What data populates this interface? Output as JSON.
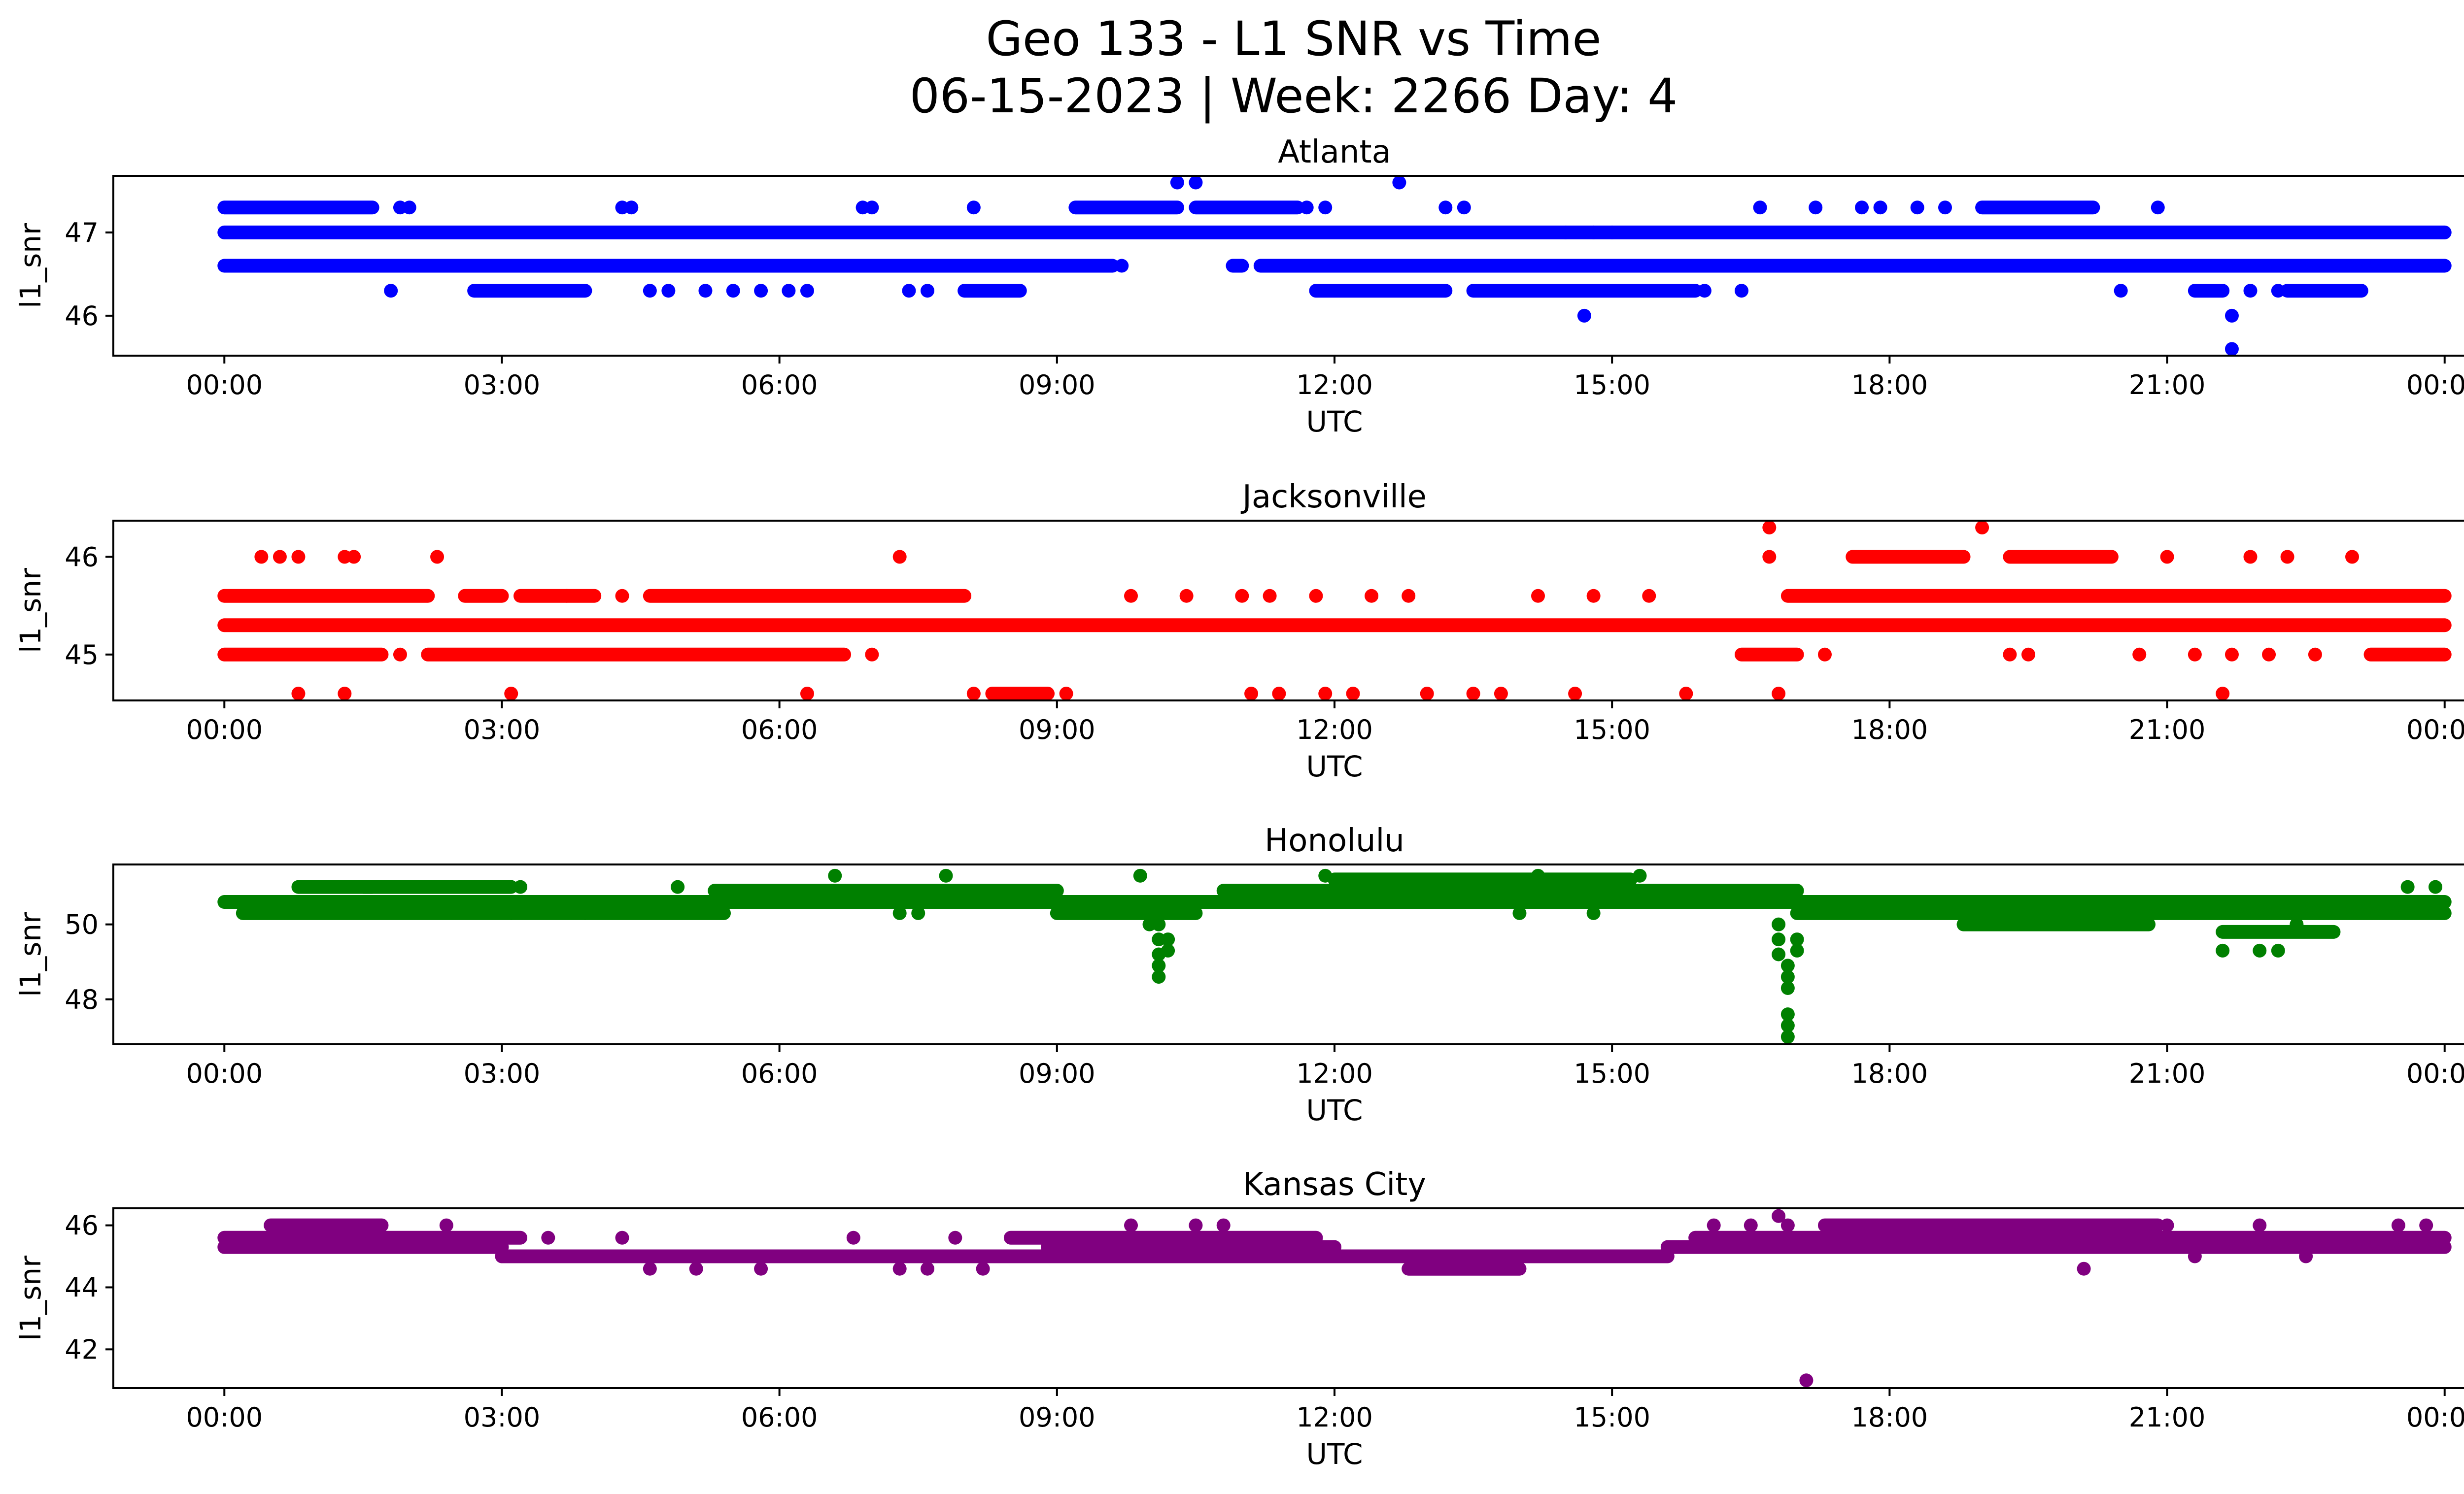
{
  "figure": {
    "title_line1": "Geo 133 - L1 SNR vs Time",
    "title_line2": "06-15-2023 | Week: 2266 Day: 4"
  },
  "chart_data": [
    {
      "type": "scatter",
      "title": "Atlanta",
      "xlabel": "UTC",
      "ylabel": "l1_snr",
      "color": "#0000ff",
      "xlim_hours": [
        -1.2,
        25.2
      ],
      "ylim": [
        45.52,
        47.68
      ],
      "xticks": [
        {
          "hour": 0,
          "label": "00:00"
        },
        {
          "hour": 3,
          "label": "03:00"
        },
        {
          "hour": 6,
          "label": "06:00"
        },
        {
          "hour": 9,
          "label": "09:00"
        },
        {
          "hour": 12,
          "label": "12:00"
        },
        {
          "hour": 15,
          "label": "15:00"
        },
        {
          "hour": 18,
          "label": "18:00"
        },
        {
          "hour": 21,
          "label": "21:00"
        },
        {
          "hour": 24,
          "label": "00:00"
        }
      ],
      "yticks": [
        {
          "value": 46,
          "label": "46"
        },
        {
          "value": 47,
          "label": "47"
        }
      ],
      "bands": [
        {
          "y": 47.0,
          "ranges": [
            [
              0.0,
              24.0
            ]
          ]
        },
        {
          "y": 46.6,
          "ranges": [
            [
              0.0,
              9.6
            ],
            [
              10.9,
              11.0
            ],
            [
              11.2,
              24.0
            ]
          ]
        },
        {
          "y": 47.3,
          "ranges": [
            [
              0.0,
              1.6
            ],
            [
              9.2,
              10.3
            ],
            [
              10.5,
              11.6
            ],
            [
              19.0,
              20.2
            ]
          ]
        },
        {
          "y": 46.3,
          "ranges": [
            [
              2.7,
              3.9
            ],
            [
              8.0,
              8.6
            ],
            [
              11.8,
              13.2
            ],
            [
              13.5,
              15.9
            ],
            [
              21.3,
              21.6
            ],
            [
              22.3,
              23.1
            ]
          ]
        }
      ],
      "points": [
        [
          1.8,
          46.3
        ],
        [
          1.9,
          47.3
        ],
        [
          2.0,
          47.3
        ],
        [
          4.3,
          47.3
        ],
        [
          4.4,
          47.3
        ],
        [
          4.6,
          46.3
        ],
        [
          4.8,
          46.3
        ],
        [
          5.2,
          46.3
        ],
        [
          5.5,
          46.3
        ],
        [
          5.8,
          46.3
        ],
        [
          6.1,
          46.3
        ],
        [
          6.3,
          46.3
        ],
        [
          6.9,
          47.3
        ],
        [
          7.0,
          47.3
        ],
        [
          7.4,
          46.3
        ],
        [
          7.6,
          46.3
        ],
        [
          8.1,
          47.3
        ],
        [
          9.7,
          46.6
        ],
        [
          10.3,
          47.6
        ],
        [
          10.5,
          47.6
        ],
        [
          11.7,
          47.3
        ],
        [
          11.9,
          47.3
        ],
        [
          12.7,
          47.6
        ],
        [
          13.2,
          47.3
        ],
        [
          13.4,
          47.3
        ],
        [
          14.5,
          47.0
        ],
        [
          14.7,
          46.0
        ],
        [
          14.8,
          47.0
        ],
        [
          15.0,
          47.0
        ],
        [
          16.0,
          46.3
        ],
        [
          16.4,
          46.3
        ],
        [
          16.6,
          47.3
        ],
        [
          17.2,
          47.3
        ],
        [
          17.7,
          47.3
        ],
        [
          17.9,
          47.3
        ],
        [
          18.3,
          47.3
        ],
        [
          18.6,
          47.3
        ],
        [
          20.5,
          46.3
        ],
        [
          20.9,
          47.3
        ],
        [
          21.7,
          46.0
        ],
        [
          21.7,
          45.6
        ],
        [
          21.9,
          46.3
        ],
        [
          22.2,
          46.3
        ]
      ]
    },
    {
      "type": "scatter",
      "title": "Jacksonville",
      "xlabel": "UTC",
      "ylabel": "l1_snr",
      "color": "#ff0000",
      "xlim_hours": [
        -1.2,
        25.2
      ],
      "ylim": [
        44.53,
        46.37
      ],
      "xticks": [
        {
          "hour": 0,
          "label": "00:00"
        },
        {
          "hour": 3,
          "label": "03:00"
        },
        {
          "hour": 6,
          "label": "06:00"
        },
        {
          "hour": 9,
          "label": "09:00"
        },
        {
          "hour": 12,
          "label": "12:00"
        },
        {
          "hour": 15,
          "label": "15:00"
        },
        {
          "hour": 18,
          "label": "18:00"
        },
        {
          "hour": 21,
          "label": "21:00"
        },
        {
          "hour": 24,
          "label": "00:00"
        }
      ],
      "yticks": [
        {
          "value": 45,
          "label": "45"
        },
        {
          "value": 46,
          "label": "46"
        }
      ],
      "bands": [
        {
          "y": 45.3,
          "ranges": [
            [
              0.0,
              24.0
            ]
          ]
        },
        {
          "y": 45.0,
          "ranges": [
            [
              0.0,
              1.7
            ],
            [
              2.2,
              6.7
            ],
            [
              16.4,
              17.0
            ],
            [
              23.2,
              24.0
            ]
          ]
        },
        {
          "y": 45.6,
          "ranges": [
            [
              0.0,
              2.2
            ],
            [
              2.6,
              3.0
            ],
            [
              3.2,
              4.0
            ],
            [
              4.6,
              8.0
            ],
            [
              16.9,
              24.0
            ]
          ]
        },
        {
          "y": 46.0,
          "ranges": [
            [
              17.6,
              18.8
            ],
            [
              19.3,
              20.4
            ]
          ]
        },
        {
          "y": 44.6,
          "ranges": [
            [
              8.3,
              8.9
            ]
          ]
        }
      ],
      "points": [
        [
          0.4,
          46.0
        ],
        [
          0.6,
          46.0
        ],
        [
          0.8,
          46.0
        ],
        [
          0.8,
          44.6
        ],
        [
          1.3,
          46.0
        ],
        [
          1.4,
          46.0
        ],
        [
          1.3,
          44.6
        ],
        [
          1.9,
          45.0
        ],
        [
          2.3,
          46.0
        ],
        [
          3.1,
          44.6
        ],
        [
          3.7,
          45.6
        ],
        [
          4.3,
          45.6
        ],
        [
          6.3,
          44.6
        ],
        [
          7.3,
          46.0
        ],
        [
          7.0,
          45.0
        ],
        [
          8.1,
          44.6
        ],
        [
          9.1,
          44.6
        ],
        [
          9.8,
          45.6
        ],
        [
          10.4,
          45.6
        ],
        [
          11.0,
          45.6
        ],
        [
          11.3,
          45.6
        ],
        [
          11.1,
          44.6
        ],
        [
          11.4,
          44.6
        ],
        [
          11.8,
          45.6
        ],
        [
          11.9,
          44.6
        ],
        [
          12.2,
          44.6
        ],
        [
          12.4,
          45.6
        ],
        [
          12.8,
          45.6
        ],
        [
          13.0,
          44.6
        ],
        [
          13.5,
          44.6
        ],
        [
          13.8,
          44.6
        ],
        [
          14.6,
          44.6
        ],
        [
          14.2,
          45.6
        ],
        [
          14.8,
          45.6
        ],
        [
          15.4,
          45.6
        ],
        [
          15.8,
          44.6
        ],
        [
          16.7,
          46.3
        ],
        [
          16.7,
          46.0
        ],
        [
          16.8,
          44.6
        ],
        [
          17.3,
          45.0
        ],
        [
          19.0,
          46.3
        ],
        [
          19.3,
          45.0
        ],
        [
          19.5,
          45.0
        ],
        [
          20.7,
          45.0
        ],
        [
          21.0,
          46.0
        ],
        [
          21.3,
          45.0
        ],
        [
          21.6,
          44.6
        ],
        [
          21.7,
          45.0
        ],
        [
          22.1,
          45.0
        ],
        [
          21.9,
          46.0
        ],
        [
          22.3,
          46.0
        ],
        [
          22.6,
          45.0
        ],
        [
          23.0,
          46.0
        ]
      ]
    },
    {
      "type": "scatter",
      "title": "Honolulu",
      "xlabel": "UTC",
      "ylabel": "l1_snr",
      "color": "#008000",
      "xlim_hours": [
        -1.2,
        25.2
      ],
      "ylim": [
        46.8,
        51.6
      ],
      "xticks": [
        {
          "hour": 0,
          "label": "00:00"
        },
        {
          "hour": 3,
          "label": "03:00"
        },
        {
          "hour": 6,
          "label": "06:00"
        },
        {
          "hour": 9,
          "label": "09:00"
        },
        {
          "hour": 12,
          "label": "12:00"
        },
        {
          "hour": 15,
          "label": "15:00"
        },
        {
          "hour": 18,
          "label": "18:00"
        },
        {
          "hour": 21,
          "label": "21:00"
        },
        {
          "hour": 24,
          "label": "00:00"
        }
      ],
      "yticks": [
        {
          "value": 48,
          "label": "48"
        },
        {
          "value": 50,
          "label": "50"
        }
      ],
      "bands": [
        {
          "y": 50.6,
          "ranges": [
            [
              0.0,
              24.0
            ]
          ]
        },
        {
          "y": 50.3,
          "ranges": [
            [
              0.2,
              5.4
            ],
            [
              9.0,
              10.5
            ],
            [
              17.0,
              24.0
            ]
          ]
        },
        {
          "y": 50.0,
          "ranges": [
            [
              18.8,
              20.8
            ]
          ]
        },
        {
          "y": 50.9,
          "ranges": [
            [
              5.3,
              9.0
            ],
            [
              10.8,
              17.0
            ]
          ]
        },
        {
          "y": 51.0,
          "ranges": [
            [
              0.8,
              1.6
            ],
            [
              1.5,
              3.1
            ]
          ]
        },
        {
          "y": 51.2,
          "ranges": [
            [
              12.0,
              15.2
            ]
          ]
        },
        {
          "y": 49.8,
          "ranges": [
            [
              21.6,
              22.8
            ]
          ]
        }
      ],
      "points": [
        [
          10.1,
          50.0
        ],
        [
          10.1,
          49.6
        ],
        [
          10.1,
          49.2
        ],
        [
          10.1,
          48.9
        ],
        [
          10.1,
          48.6
        ],
        [
          10.2,
          49.3
        ],
        [
          10.2,
          49.6
        ],
        [
          10.0,
          50.0
        ],
        [
          16.8,
          50.0
        ],
        [
          16.8,
          49.6
        ],
        [
          16.8,
          49.2
        ],
        [
          16.9,
          48.9
        ],
        [
          16.9,
          48.6
        ],
        [
          16.9,
          48.3
        ],
        [
          16.9,
          47.6
        ],
        [
          16.9,
          47.3
        ],
        [
          16.9,
          47.0
        ],
        [
          17.0,
          49.3
        ],
        [
          17.0,
          49.6
        ],
        [
          21.6,
          49.3
        ],
        [
          22.0,
          49.3
        ],
        [
          22.2,
          49.3
        ],
        [
          22.4,
          50.0
        ],
        [
          6.6,
          51.3
        ],
        [
          7.8,
          51.3
        ],
        [
          9.9,
          51.3
        ],
        [
          4.9,
          51.0
        ],
        [
          3.2,
          51.0
        ],
        [
          11.9,
          51.3
        ],
        [
          14.2,
          51.3
        ],
        [
          15.3,
          51.3
        ],
        [
          23.6,
          51.0
        ],
        [
          23.9,
          51.0
        ],
        [
          3.1,
          50.3
        ],
        [
          3.9,
          50.3
        ],
        [
          7.3,
          50.3
        ],
        [
          7.5,
          50.3
        ],
        [
          14.0,
          50.3
        ],
        [
          14.8,
          50.3
        ]
      ]
    },
    {
      "type": "scatter",
      "title": "Kansas City",
      "xlabel": "UTC",
      "ylabel": "l1_snr",
      "color": "#800080",
      "xlim_hours": [
        -1.2,
        25.2
      ],
      "ylim": [
        40.75,
        46.55
      ],
      "xticks": [
        {
          "hour": 0,
          "label": "00:00"
        },
        {
          "hour": 3,
          "label": "03:00"
        },
        {
          "hour": 6,
          "label": "06:00"
        },
        {
          "hour": 9,
          "label": "09:00"
        },
        {
          "hour": 12,
          "label": "12:00"
        },
        {
          "hour": 15,
          "label": "15:00"
        },
        {
          "hour": 18,
          "label": "18:00"
        },
        {
          "hour": 21,
          "label": "21:00"
        },
        {
          "hour": 24,
          "label": "00:00"
        }
      ],
      "yticks": [
        {
          "value": 42,
          "label": "42"
        },
        {
          "value": 44,
          "label": "44"
        },
        {
          "value": 46,
          "label": "46"
        }
      ],
      "bands": [
        {
          "y": 45.3,
          "ranges": [
            [
              0.0,
              3.0
            ],
            [
              8.9,
              12.0
            ],
            [
              15.6,
              24.0
            ]
          ]
        },
        {
          "y": 45.0,
          "ranges": [
            [
              3.0,
              15.6
            ]
          ]
        },
        {
          "y": 45.6,
          "ranges": [
            [
              0.0,
              3.2
            ],
            [
              8.5,
              11.8
            ],
            [
              15.9,
              24.0
            ]
          ]
        },
        {
          "y": 46.0,
          "ranges": [
            [
              0.5,
              1.7
            ],
            [
              17.3,
              20.9
            ]
          ]
        },
        {
          "y": 44.6,
          "ranges": [
            [
              12.8,
              14.0
            ]
          ]
        }
      ],
      "points": [
        [
          2.4,
          46.0
        ],
        [
          4.6,
          44.6
        ],
        [
          5.1,
          44.6
        ],
        [
          5.8,
          44.6
        ],
        [
          7.3,
          44.6
        ],
        [
          7.6,
          44.6
        ],
        [
          8.2,
          44.6
        ],
        [
          9.8,
          46.0
        ],
        [
          10.5,
          46.0
        ],
        [
          10.8,
          46.0
        ],
        [
          16.1,
          46.0
        ],
        [
          16.5,
          46.0
        ],
        [
          16.8,
          46.3
        ],
        [
          16.9,
          46.0
        ],
        [
          17.1,
          41.0
        ],
        [
          20.1,
          44.6
        ],
        [
          21.0,
          46.0
        ],
        [
          21.3,
          45.0
        ],
        [
          22.0,
          46.0
        ],
        [
          22.5,
          45.0
        ],
        [
          23.5,
          46.0
        ],
        [
          23.8,
          46.0
        ],
        [
          3.5,
          45.6
        ],
        [
          4.3,
          45.6
        ],
        [
          6.8,
          45.6
        ],
        [
          7.9,
          45.6
        ]
      ]
    }
  ]
}
